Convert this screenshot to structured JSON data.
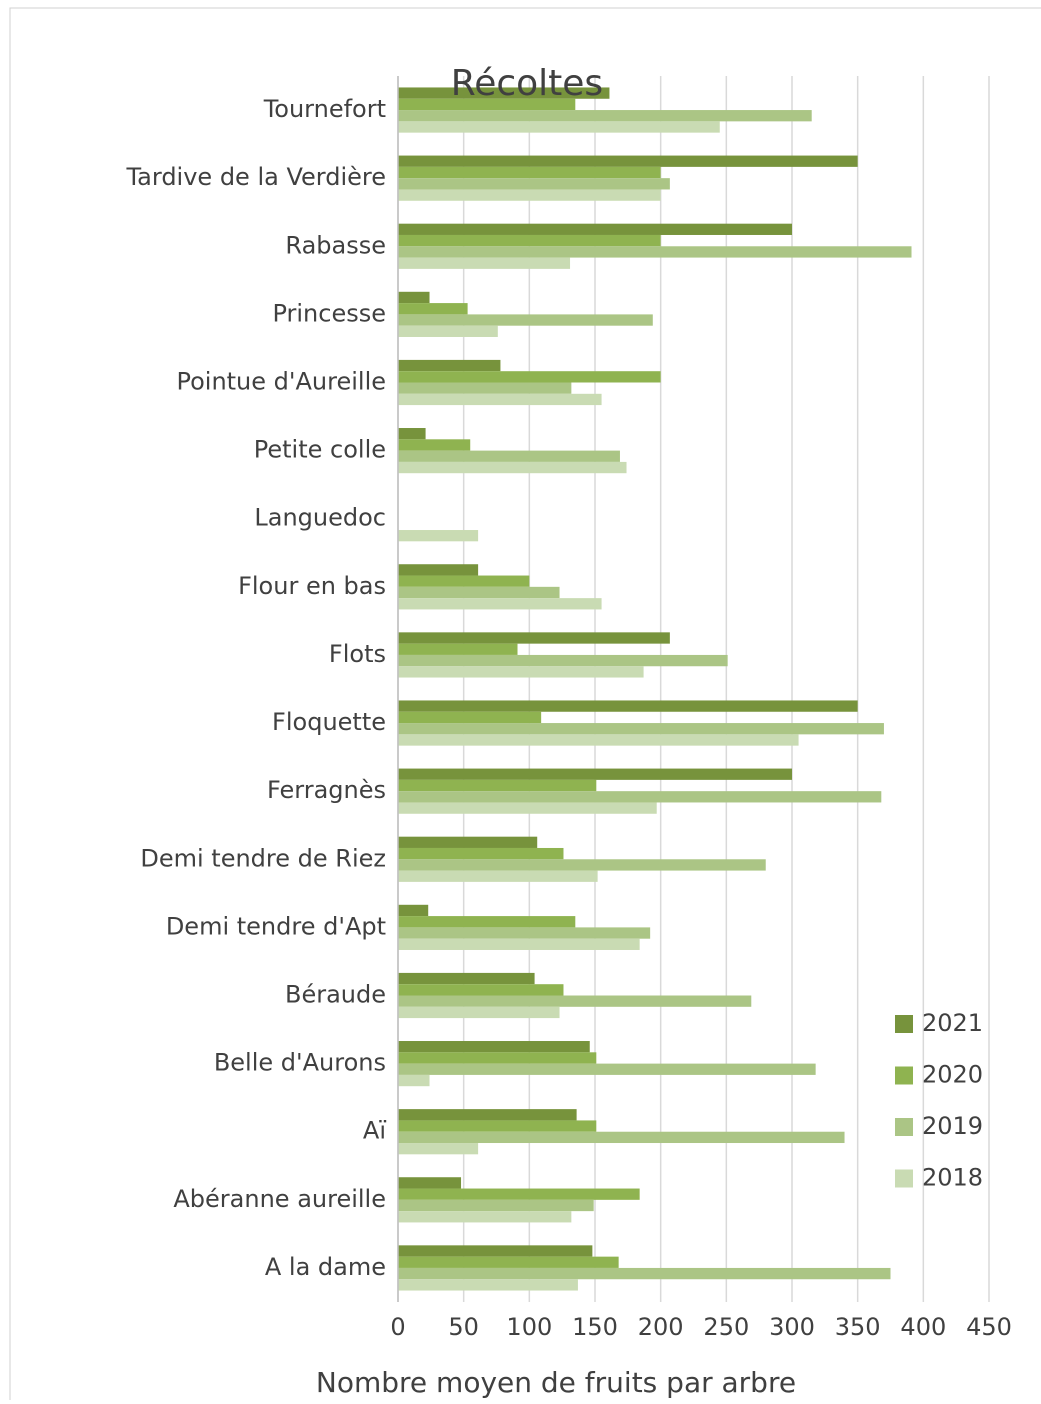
{
  "chart_data": {
    "type": "hbar",
    "title": "Récoltes",
    "x_label": "Nombre moyen de fruits par arbre",
    "categories": [
      "Tournefort",
      "Tardive de la Verdière",
      "Rabasse",
      "Princesse",
      "Pointue d'Aureille",
      "Petite colle",
      "Languedoc",
      "Flour en bas",
      "Flots",
      "Floquette",
      "Ferragnès",
      "Demi tendre de Riez",
      "Demi tendre d'Apt",
      "Béraude",
      "Belle d'Aurons",
      "Aï",
      "Abéranne aureille",
      "A la dame"
    ],
    "series": [
      {
        "name": "2021",
        "color": "#77933c",
        "values": [
          161,
          350,
          300,
          24,
          78,
          21,
          0,
          61,
          207,
          350,
          300,
          106,
          23,
          104,
          146,
          136,
          48,
          148
        ]
      },
      {
        "name": "2020",
        "color": "#8fb350",
        "values": [
          135,
          200,
          200,
          53,
          200,
          55,
          0,
          100,
          91,
          109,
          151,
          126,
          135,
          126,
          151,
          151,
          184,
          168
        ]
      },
      {
        "name": "2019",
        "color": "#abc585",
        "values": [
          315,
          207,
          391,
          194,
          132,
          169,
          0,
          123,
          251,
          370,
          368,
          280,
          192,
          269,
          318,
          340,
          149,
          375
        ]
      },
      {
        "name": "2018",
        "color": "#c9dbb3",
        "values": [
          245,
          200,
          131,
          76,
          155,
          174,
          61,
          155,
          187,
          305,
          197,
          152,
          184,
          123,
          24,
          61,
          132,
          137
        ]
      }
    ],
    "xlim": [
      0,
      450
    ],
    "xticks": [
      0,
      50,
      100,
      150,
      200,
      250,
      300,
      350,
      400,
      450
    ],
    "grid": true,
    "legend": "right"
  }
}
